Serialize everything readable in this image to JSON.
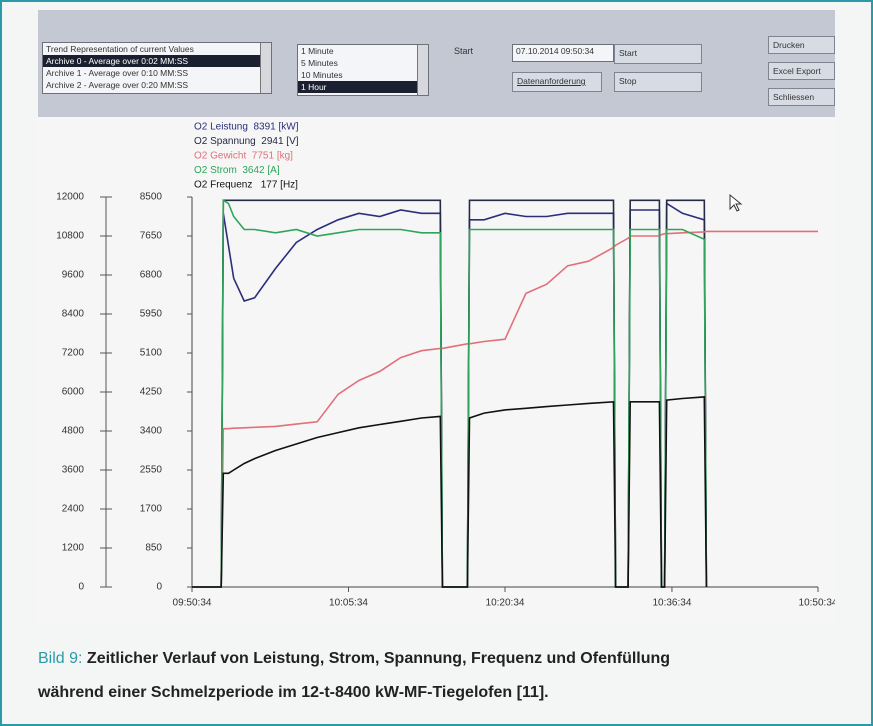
{
  "toolbar": {
    "archive_list": [
      "Trend Representation of current Values",
      "Archive 0 - Average over 0:02 MM:SS",
      "Archive 1 - Average over 0:10 MM:SS",
      "Archive 2 - Average over 0:20 MM:SS"
    ],
    "interval_list": [
      "1 Minute",
      "5 Minutes",
      "10 Minutes",
      "1 Hour"
    ],
    "start_label": "Start",
    "start_time": "07.10.2014 09:50:34",
    "request_button": "Datenanforderung",
    "start_button": "Start",
    "stop_button": "Stop",
    "print_button": "Drucken",
    "export_button": "Excel Export",
    "close_button": "Schliessen"
  },
  "chart_data": {
    "type": "line",
    "x": [
      0,
      2.8,
      3,
      3.5,
      4,
      5,
      6,
      8,
      10,
      12,
      14,
      16,
      18,
      20,
      22,
      23.8,
      24,
      26.4,
      26.6,
      28,
      30,
      32,
      34,
      36,
      38,
      40.4,
      40.6,
      41.8,
      42,
      44.8,
      45,
      45.3,
      45.5,
      47,
      49.1,
      49.3,
      60
    ],
    "xlim": [
      0,
      60
    ],
    "xticks": [
      {
        "value": 0,
        "label": "09:50:34"
      },
      {
        "value": 15,
        "label": "10:05:34"
      },
      {
        "value": 30,
        "label": "10:20:34"
      },
      {
        "value": 46,
        "label": "10:36:34"
      },
      {
        "value": 60,
        "label": "10:50:34"
      }
    ],
    "ylim": [
      0,
      12000
    ],
    "yticks": [
      0,
      1200,
      2400,
      3600,
      4800,
      6000,
      7200,
      8400,
      9600,
      10800,
      12000
    ],
    "y2lim": [
      0,
      8500
    ],
    "y2ticks": [
      0,
      850,
      1700,
      2550,
      3400,
      4250,
      5100,
      5950,
      6800,
      7650,
      8500
    ],
    "series": [
      {
        "name": "O2 Leistung  8391 [kW]",
        "color": "#2a2f7a",
        "values": [
          0,
          0,
          11500,
          10500,
          9500,
          8800,
          8900,
          9800,
          10600,
          11000,
          11300,
          11500,
          11400,
          11600,
          11500,
          11500,
          0,
          0,
          11300,
          11300,
          11500,
          11400,
          11400,
          11500,
          11500,
          11500,
          0,
          0,
          11600,
          11600,
          0,
          0,
          11800,
          11500,
          11300,
          0,
          null
        ]
      },
      {
        "name": "O2 Spannung  2941 [V]",
        "color": "#252a45",
        "values": [
          0,
          0,
          11900,
          11900,
          11900,
          11900,
          11900,
          11900,
          11900,
          11900,
          11900,
          11900,
          11900,
          11900,
          11900,
          11900,
          0,
          0,
          11900,
          11900,
          11900,
          11900,
          11900,
          11900,
          11900,
          11900,
          0,
          0,
          11900,
          11900,
          0,
          0,
          11900,
          11900,
          11900,
          0,
          null
        ]
      },
      {
        "name": "O2 Gewicht  7751 [kg]",
        "color": "#e0707a",
        "axis": "y2",
        "values": [
          0,
          0,
          3450,
          3450,
          3460,
          3470,
          3480,
          3500,
          3550,
          3600,
          4200,
          4500,
          4700,
          5000,
          5150,
          5200,
          5200,
          5300,
          5300,
          5350,
          5400,
          6400,
          6600,
          7000,
          7100,
          7400,
          7450,
          7600,
          7650,
          7650,
          7680,
          7700,
          7700,
          7720,
          7740,
          7751,
          7751
        ]
      },
      {
        "name": "O2 Strom  3642 [A]",
        "color": "#2fa45a",
        "values": [
          0,
          0,
          11900,
          11800,
          11400,
          11000,
          11000,
          10900,
          11000,
          10800,
          10900,
          11000,
          11000,
          11000,
          10900,
          10900,
          0,
          0,
          11000,
          11000,
          11000,
          11000,
          11000,
          11000,
          11000,
          11000,
          0,
          0,
          11000,
          11000,
          0,
          0,
          11000,
          11000,
          10700,
          0,
          null
        ]
      },
      {
        "name": "O2 Frequenz   177 [Hz]",
        "color": "#111111",
        "values": [
          0,
          0,
          3500,
          3500,
          3600,
          3800,
          3950,
          4200,
          4400,
          4600,
          4750,
          4900,
          5000,
          5100,
          5200,
          5250,
          0,
          0,
          5200,
          5350,
          5450,
          5500,
          5550,
          5600,
          5650,
          5700,
          0,
          0,
          5700,
          5700,
          0,
          0,
          5750,
          5800,
          5850,
          0,
          null
        ]
      }
    ]
  },
  "caption": {
    "label": "Bild 9:",
    "lines": [
      "Zeitlicher Verlauf von Leistung, Strom, Spannung, Frequenz und Ofenfüllung",
      "während einer Schmelzperiode im 12-t-8400 kW-MF-Tiegelofen [11]."
    ]
  }
}
